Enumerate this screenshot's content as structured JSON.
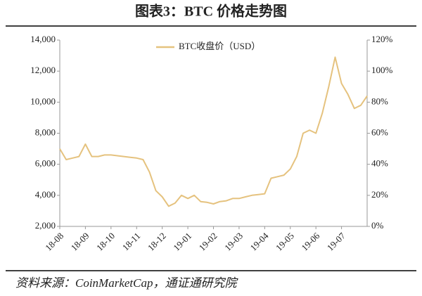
{
  "chart_data": {
    "type": "line",
    "title": "图表3：BTC 价格走势图",
    "source": "资料来源：CoinMarketCap，通证通研究院",
    "categories": [
      "18-08",
      null,
      null,
      null,
      "18-09",
      null,
      null,
      null,
      "18-10",
      null,
      null,
      null,
      "18-11",
      null,
      null,
      null,
      "18-12",
      null,
      null,
      null,
      "19-01",
      null,
      null,
      null,
      "19-02",
      null,
      null,
      null,
      "19-03",
      null,
      null,
      null,
      "19-04",
      null,
      null,
      null,
      "19-05",
      null,
      null,
      null,
      "19-06",
      null,
      null,
      null,
      "19-07",
      null,
      null,
      null,
      null
    ],
    "series": [
      {
        "name": "BTC收盘价（USD）",
        "color": "#e5c27e",
        "values": [
          7000,
          6300,
          6400,
          6500,
          7300,
          6500,
          6500,
          6600,
          6600,
          6550,
          6500,
          6450,
          6400,
          6300,
          5500,
          4300,
          3900,
          3300,
          3500,
          4000,
          3800,
          4000,
          3600,
          3550,
          3450,
          3600,
          3650,
          3800,
          3800,
          3900,
          4000,
          4050,
          4100,
          5100,
          5200,
          5300,
          5700,
          6500,
          8000,
          8200,
          8000,
          9300,
          11000,
          12900,
          11200,
          10500,
          9600,
          9800,
          10400
        ]
      }
    ],
    "ylim": [
      2000,
      14000
    ],
    "yticks": [
      {
        "value": 2000,
        "label": "2,000"
      },
      {
        "value": 4000,
        "label": "4,000"
      },
      {
        "value": 6000,
        "label": "6,000"
      },
      {
        "value": 8000,
        "label": "8,000"
      },
      {
        "value": 10000,
        "label": "10,000"
      },
      {
        "value": 12000,
        "label": "12,000"
      },
      {
        "value": 14000,
        "label": "14,000"
      }
    ],
    "y2lim": [
      0,
      120
    ],
    "y2ticks": [
      {
        "value": 0,
        "label": "0%"
      },
      {
        "value": 20,
        "label": "20%"
      },
      {
        "value": 40,
        "label": "40%"
      },
      {
        "value": 60,
        "label": "60%"
      },
      {
        "value": 80,
        "label": "80%"
      },
      {
        "value": 100,
        "label": "100%"
      },
      {
        "value": 120,
        "label": "120%"
      }
    ],
    "legend": "top"
  }
}
